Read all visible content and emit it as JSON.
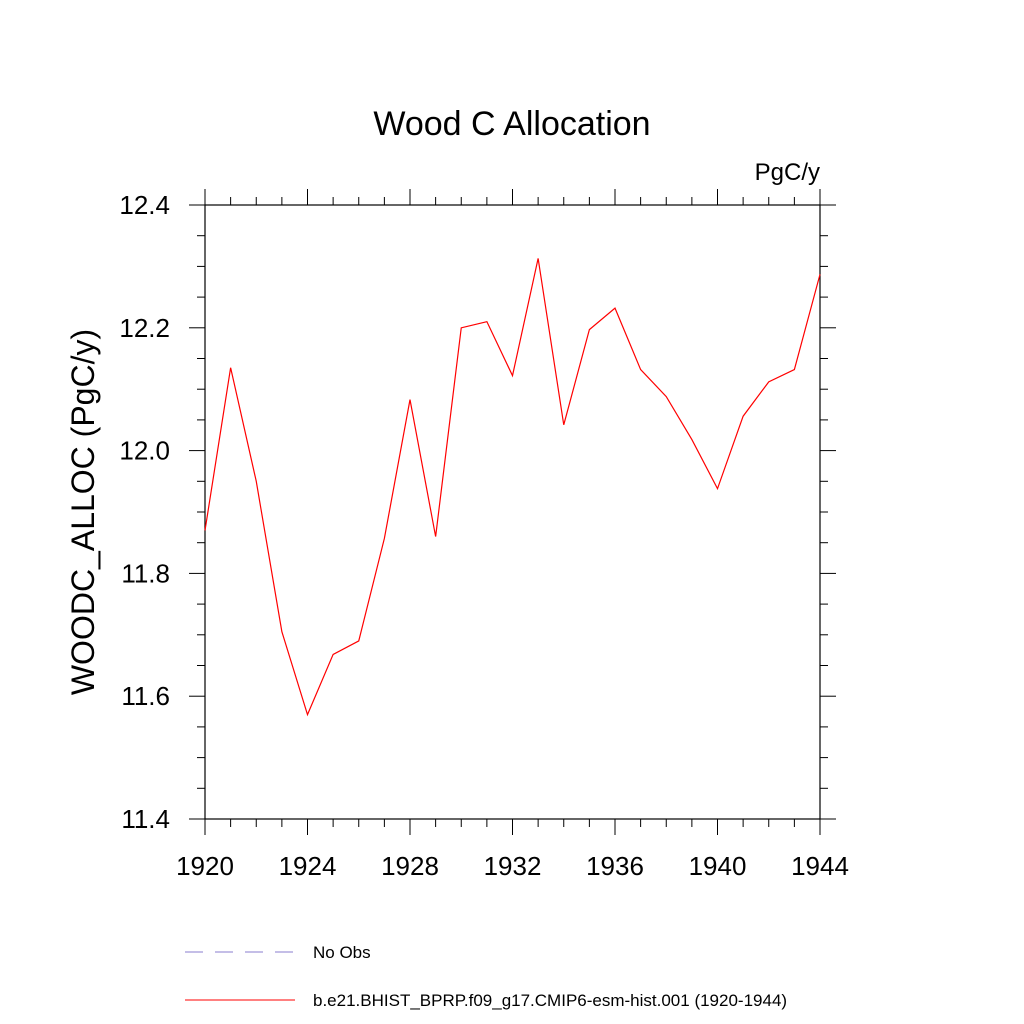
{
  "chart_data": {
    "type": "line",
    "title": "Wood C Allocation",
    "units_label": "PgC/y",
    "ylabel": "WOODC_ALLOC  (PgC/y)",
    "xlabel": "",
    "xlim": [
      1920,
      1944
    ],
    "ylim": [
      11.4,
      12.4
    ],
    "x_ticks": [
      1920,
      1924,
      1928,
      1932,
      1936,
      1940,
      1944
    ],
    "y_ticks": [
      11.4,
      11.6,
      11.8,
      12.0,
      12.2,
      12.4
    ],
    "x_tick_labels": [
      "1920",
      "1924",
      "1928",
      "1932",
      "1936",
      "1940",
      "1944"
    ],
    "y_tick_labels": [
      "11.4",
      "11.6",
      "11.8",
      "12.0",
      "12.2",
      "12.4"
    ],
    "grid": false,
    "series": [
      {
        "name": "b.e21.BHIST_BPRP.f09_g17.CMIP6-esm-hist.001 (1920-1944)",
        "color": "#ff0000",
        "style": "solid",
        "x": [
          1920,
          1921,
          1922,
          1923,
          1924,
          1925,
          1926,
          1927,
          1928,
          1929,
          1930,
          1931,
          1932,
          1933,
          1934,
          1935,
          1936,
          1937,
          1938,
          1939,
          1940,
          1941,
          1942,
          1943,
          1944
        ],
        "values": [
          11.87,
          12.135,
          11.95,
          11.705,
          11.57,
          11.668,
          11.69,
          11.857,
          12.083,
          11.86,
          12.2,
          12.21,
          12.122,
          12.313,
          12.042,
          12.197,
          12.232,
          12.132,
          12.088,
          12.018,
          11.938,
          12.056,
          12.112,
          12.132,
          12.287
        ]
      }
    ],
    "legend": {
      "placement": "bottom",
      "entries": [
        {
          "label": "No Obs",
          "color": "#8a7ccf",
          "style": "dashed"
        },
        {
          "label": "b.e21.BHIST_BPRP.f09_g17.CMIP6-esm-hist.001 (1920-1944)",
          "color": "#ff0000",
          "style": "solid"
        }
      ]
    }
  }
}
